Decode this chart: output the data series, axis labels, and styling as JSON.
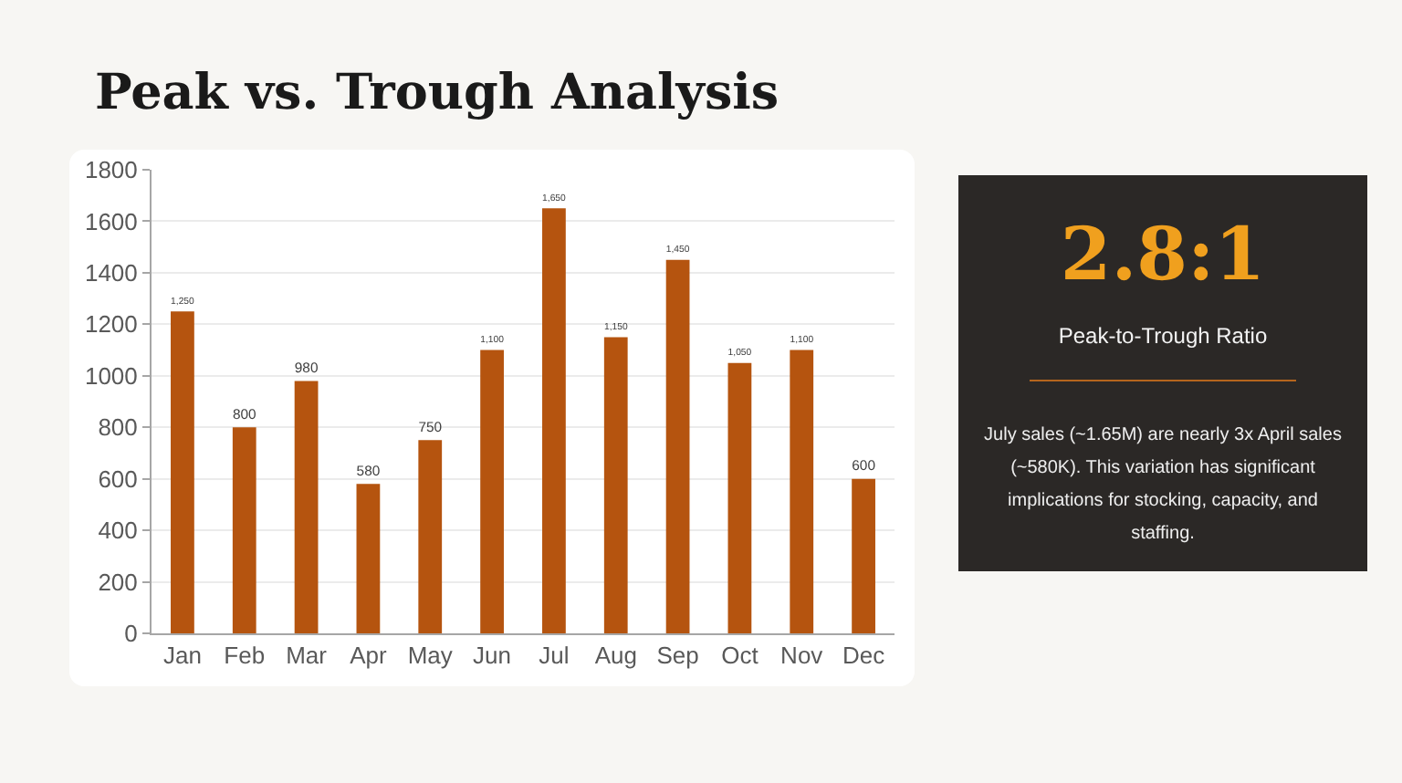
{
  "chart_data": [
    {
      "type": "bar",
      "title": "Peak vs. Trough Analysis",
      "categories": [
        "Jan",
        "Feb",
        "Mar",
        "Apr",
        "May",
        "Jun",
        "Jul",
        "Aug",
        "Sep",
        "Oct",
        "Nov",
        "Dec"
      ],
      "values": [
        1250,
        800,
        980,
        580,
        750,
        1100,
        1650,
        1150,
        1450,
        1050,
        1100,
        600
      ],
      "value_labels": [
        "1,250",
        "800",
        "980",
        "580",
        "750",
        "1,100",
        "1,650",
        "1,150",
        "1,450",
        "1,050",
        "1,100",
        "600"
      ],
      "color": "#b5540f",
      "ylim": [
        0,
        1800
      ],
      "yticks": [
        0,
        200,
        400,
        600,
        800,
        1000,
        1200,
        1400,
        1600,
        1800
      ],
      "grid": "y"
    },
    {
      "type": "other",
      "title": "2.8:1",
      "subtitle": "Peak-to-Trough Ratio",
      "annotations": [
        "July sales (~1.65M) are nearly 3x April sales (~580K). This variation has significant implications for stocking, capacity, and staffing."
      ]
    }
  ]
}
